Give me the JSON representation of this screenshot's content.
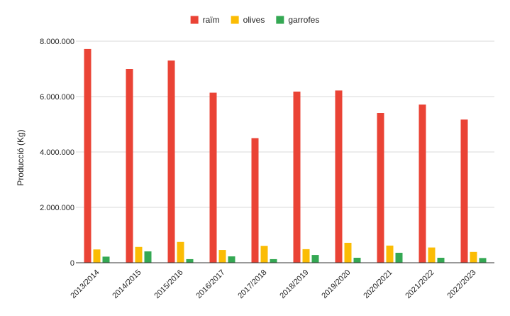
{
  "chart_data": {
    "type": "bar",
    "title": "",
    "xlabel": "",
    "ylabel": "Producció (Kg)",
    "ylim": [
      0,
      8000000
    ],
    "yticks": [
      0,
      2000000,
      4000000,
      6000000,
      8000000
    ],
    "ytick_labels": [
      "0",
      "2.000.000",
      "4.000.000",
      "6.000.000",
      "8.000.000"
    ],
    "grid": true,
    "legend_position": "top-center",
    "categories": [
      "2013/2014",
      "2014/2015",
      "2015/2016",
      "2016/2017",
      "2017/2018",
      "2018/2019",
      "2019/2020",
      "2020/2021",
      "2021/2022",
      "2022/2023"
    ],
    "series": [
      {
        "name": "raïm",
        "color": "#ea4335",
        "values": [
          7720000,
          7000000,
          7300000,
          6140000,
          4500000,
          6180000,
          6220000,
          5410000,
          5710000,
          5170000
        ]
      },
      {
        "name": "olives",
        "color": "#fbbc04",
        "values": [
          480000,
          570000,
          750000,
          460000,
          610000,
          490000,
          720000,
          620000,
          550000,
          390000
        ]
      },
      {
        "name": "garrofes",
        "color": "#34a853",
        "values": [
          220000,
          410000,
          130000,
          230000,
          130000,
          280000,
          180000,
          360000,
          180000,
          170000
        ]
      }
    ]
  }
}
